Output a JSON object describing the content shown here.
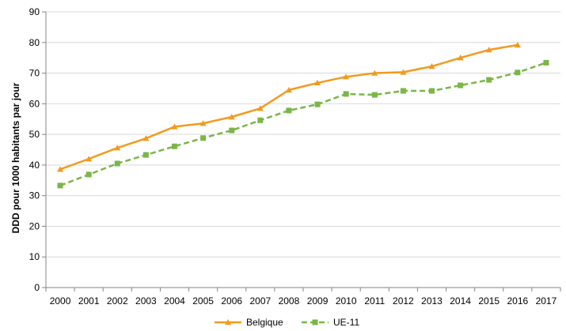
{
  "chart_data": {
    "type": "line",
    "title": "",
    "xlabel": "",
    "ylabel": "DDD pour 1000 habitants par jour",
    "ylim": [
      0,
      90
    ],
    "yticks": [
      0,
      10,
      20,
      30,
      40,
      50,
      60,
      70,
      80,
      90
    ],
    "grid": "horizontal",
    "legend_position": "bottom",
    "categories": [
      "2000",
      "2001",
      "2002",
      "2003",
      "2004",
      "2005",
      "2006",
      "2007",
      "2008",
      "2009",
      "2010",
      "2011",
      "2012",
      "2013",
      "2014",
      "2015",
      "2016",
      "2017"
    ],
    "series": [
      {
        "name": "Belgique",
        "color": "#F39A1E",
        "line_style": "solid",
        "marker": "triangle",
        "values": [
          38.6,
          42.0,
          45.6,
          48.7,
          52.5,
          53.6,
          55.7,
          58.5,
          64.5,
          66.8,
          68.8,
          70.0,
          70.3,
          72.2,
          75.0,
          77.6,
          79.2,
          null
        ]
      },
      {
        "name": "UE-11",
        "color": "#7AB648",
        "line_style": "dashed",
        "marker": "square",
        "values": [
          33.3,
          36.9,
          40.5,
          43.3,
          46.1,
          48.8,
          51.3,
          54.6,
          57.8,
          59.8,
          63.2,
          62.9,
          64.2,
          64.2,
          66.0,
          67.8,
          70.2,
          73.4
        ]
      }
    ]
  }
}
